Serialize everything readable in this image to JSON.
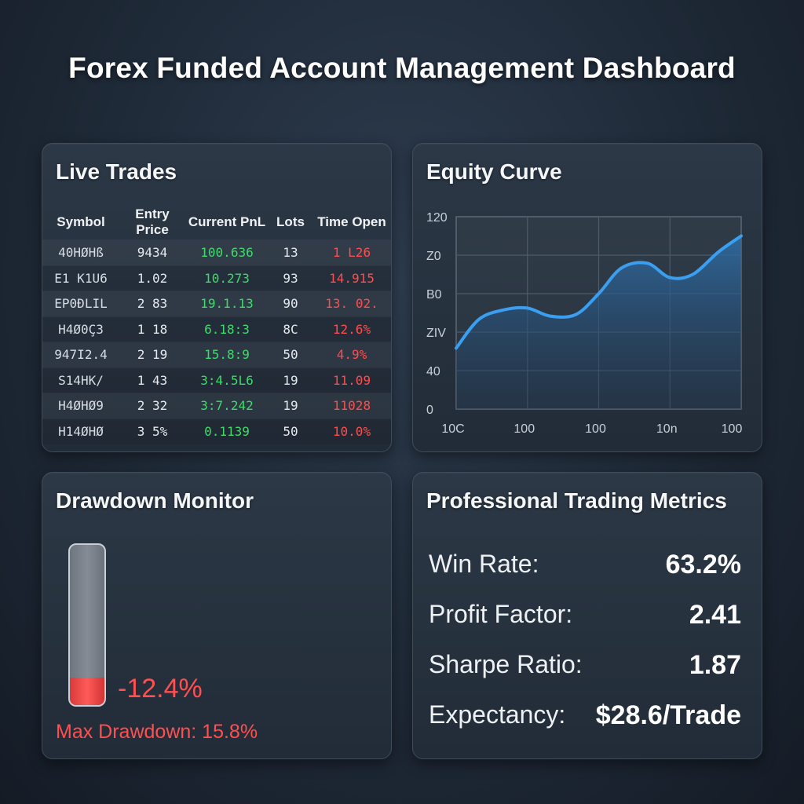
{
  "page": {
    "title": "Forex Funded Account Management Dashboard"
  },
  "live_trades": {
    "title": "Live Trades",
    "columns": [
      "Symbol",
      "Entry Price",
      "Current PnL",
      "Lots",
      "Time Open"
    ],
    "rows": [
      [
        "40HØHß",
        "9434",
        "100.636",
        "13",
        "1 L26"
      ],
      [
        "E1 K1U6",
        "1.02",
        "10.273",
        "93",
        "14.915"
      ],
      [
        "EP0ƉLIL",
        "2 83",
        "19.1.13",
        "90",
        "13. 02."
      ],
      [
        "H4Ø0Ç3",
        "1 18",
        "6.18:3",
        "8C",
        "12.6%"
      ],
      [
        "947I2.4",
        "2 19",
        "15.8:9",
        "50",
        "4.9%"
      ],
      [
        "S14HK/",
        "1 43",
        "3:4.5L6",
        "19",
        "11.09"
      ],
      [
        "H4ØHØ9",
        "2 32",
        "3:7.242",
        "19",
        "11028"
      ],
      [
        "H14ØHØ",
        "3 5%",
        "0.1139",
        "50",
        "10.0%"
      ]
    ]
  },
  "equity": {
    "title": "Equity Curve"
  },
  "chart_data": {
    "type": "area",
    "title": "Equity Curve",
    "xlabel": "",
    "ylabel": "",
    "x_tick_labels": [
      "10C",
      "100",
      "100",
      "10n",
      "100"
    ],
    "y_tick_labels": [
      "120",
      "Z0",
      "B0",
      "ZIV",
      "40",
      "0"
    ],
    "ylim": [
      0,
      120
    ],
    "series": [
      {
        "x": [
          0,
          0.08,
          0.17,
          0.25,
          0.33,
          0.42,
          0.5,
          0.58,
          0.67,
          0.75,
          0.83,
          0.92,
          1.0
        ],
        "values": [
          38,
          56,
          62,
          63,
          58,
          59,
          72,
          88,
          91,
          82,
          84,
          98,
          108
        ]
      }
    ],
    "grid": true,
    "line_color": "#3a9ff0",
    "fill_color": "#2f6fa8"
  },
  "drawdown": {
    "title": "Drawdown Monitor",
    "current_value": "-12.4%",
    "fill_fraction": 0.17,
    "max_label": "Max Drawdown: 15.8%"
  },
  "metrics": {
    "title": "Professional Trading Metrics",
    "items": [
      {
        "label": "Win Rate:",
        "value": "63.2%"
      },
      {
        "label": "Profit Factor:",
        "value": "2.41"
      },
      {
        "label": "Sharpe Ratio:",
        "value": "1.87"
      },
      {
        "label": "Expectancy:",
        "value": "$28.6/Trade"
      }
    ]
  },
  "colors": {
    "positive": "#3ddc6a",
    "negative": "#ff4d4d",
    "accent": "#3a9ff0"
  }
}
